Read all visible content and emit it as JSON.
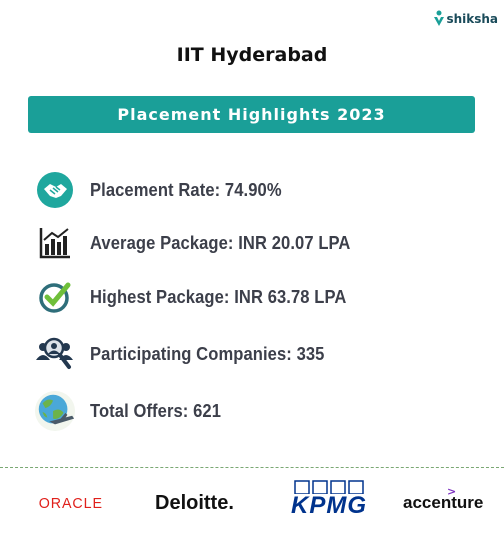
{
  "brand": {
    "name": "shiksha"
  },
  "title": "IIT Hyderabad",
  "banner": "Placement Highlights 2023",
  "stats": [
    {
      "icon": "handshake-icon",
      "label": "Placement Rate: 74.90%"
    },
    {
      "icon": "bar-chart-icon",
      "label": "Average Package: INR 20.07 LPA"
    },
    {
      "icon": "checkmark-icon",
      "label": "Highest Package: INR 63.78 LPA"
    },
    {
      "icon": "people-search-icon",
      "label": "Participating Companies: 335"
    },
    {
      "icon": "globe-plane-icon",
      "label": "Total Offers: 621"
    }
  ],
  "recruiters": [
    "ORACLE",
    "Deloitte.",
    "KPMG",
    "accenture"
  ],
  "colors": {
    "accent": "#1a9f98",
    "text": "#3c3f4a",
    "divider": "#7aa873"
  }
}
